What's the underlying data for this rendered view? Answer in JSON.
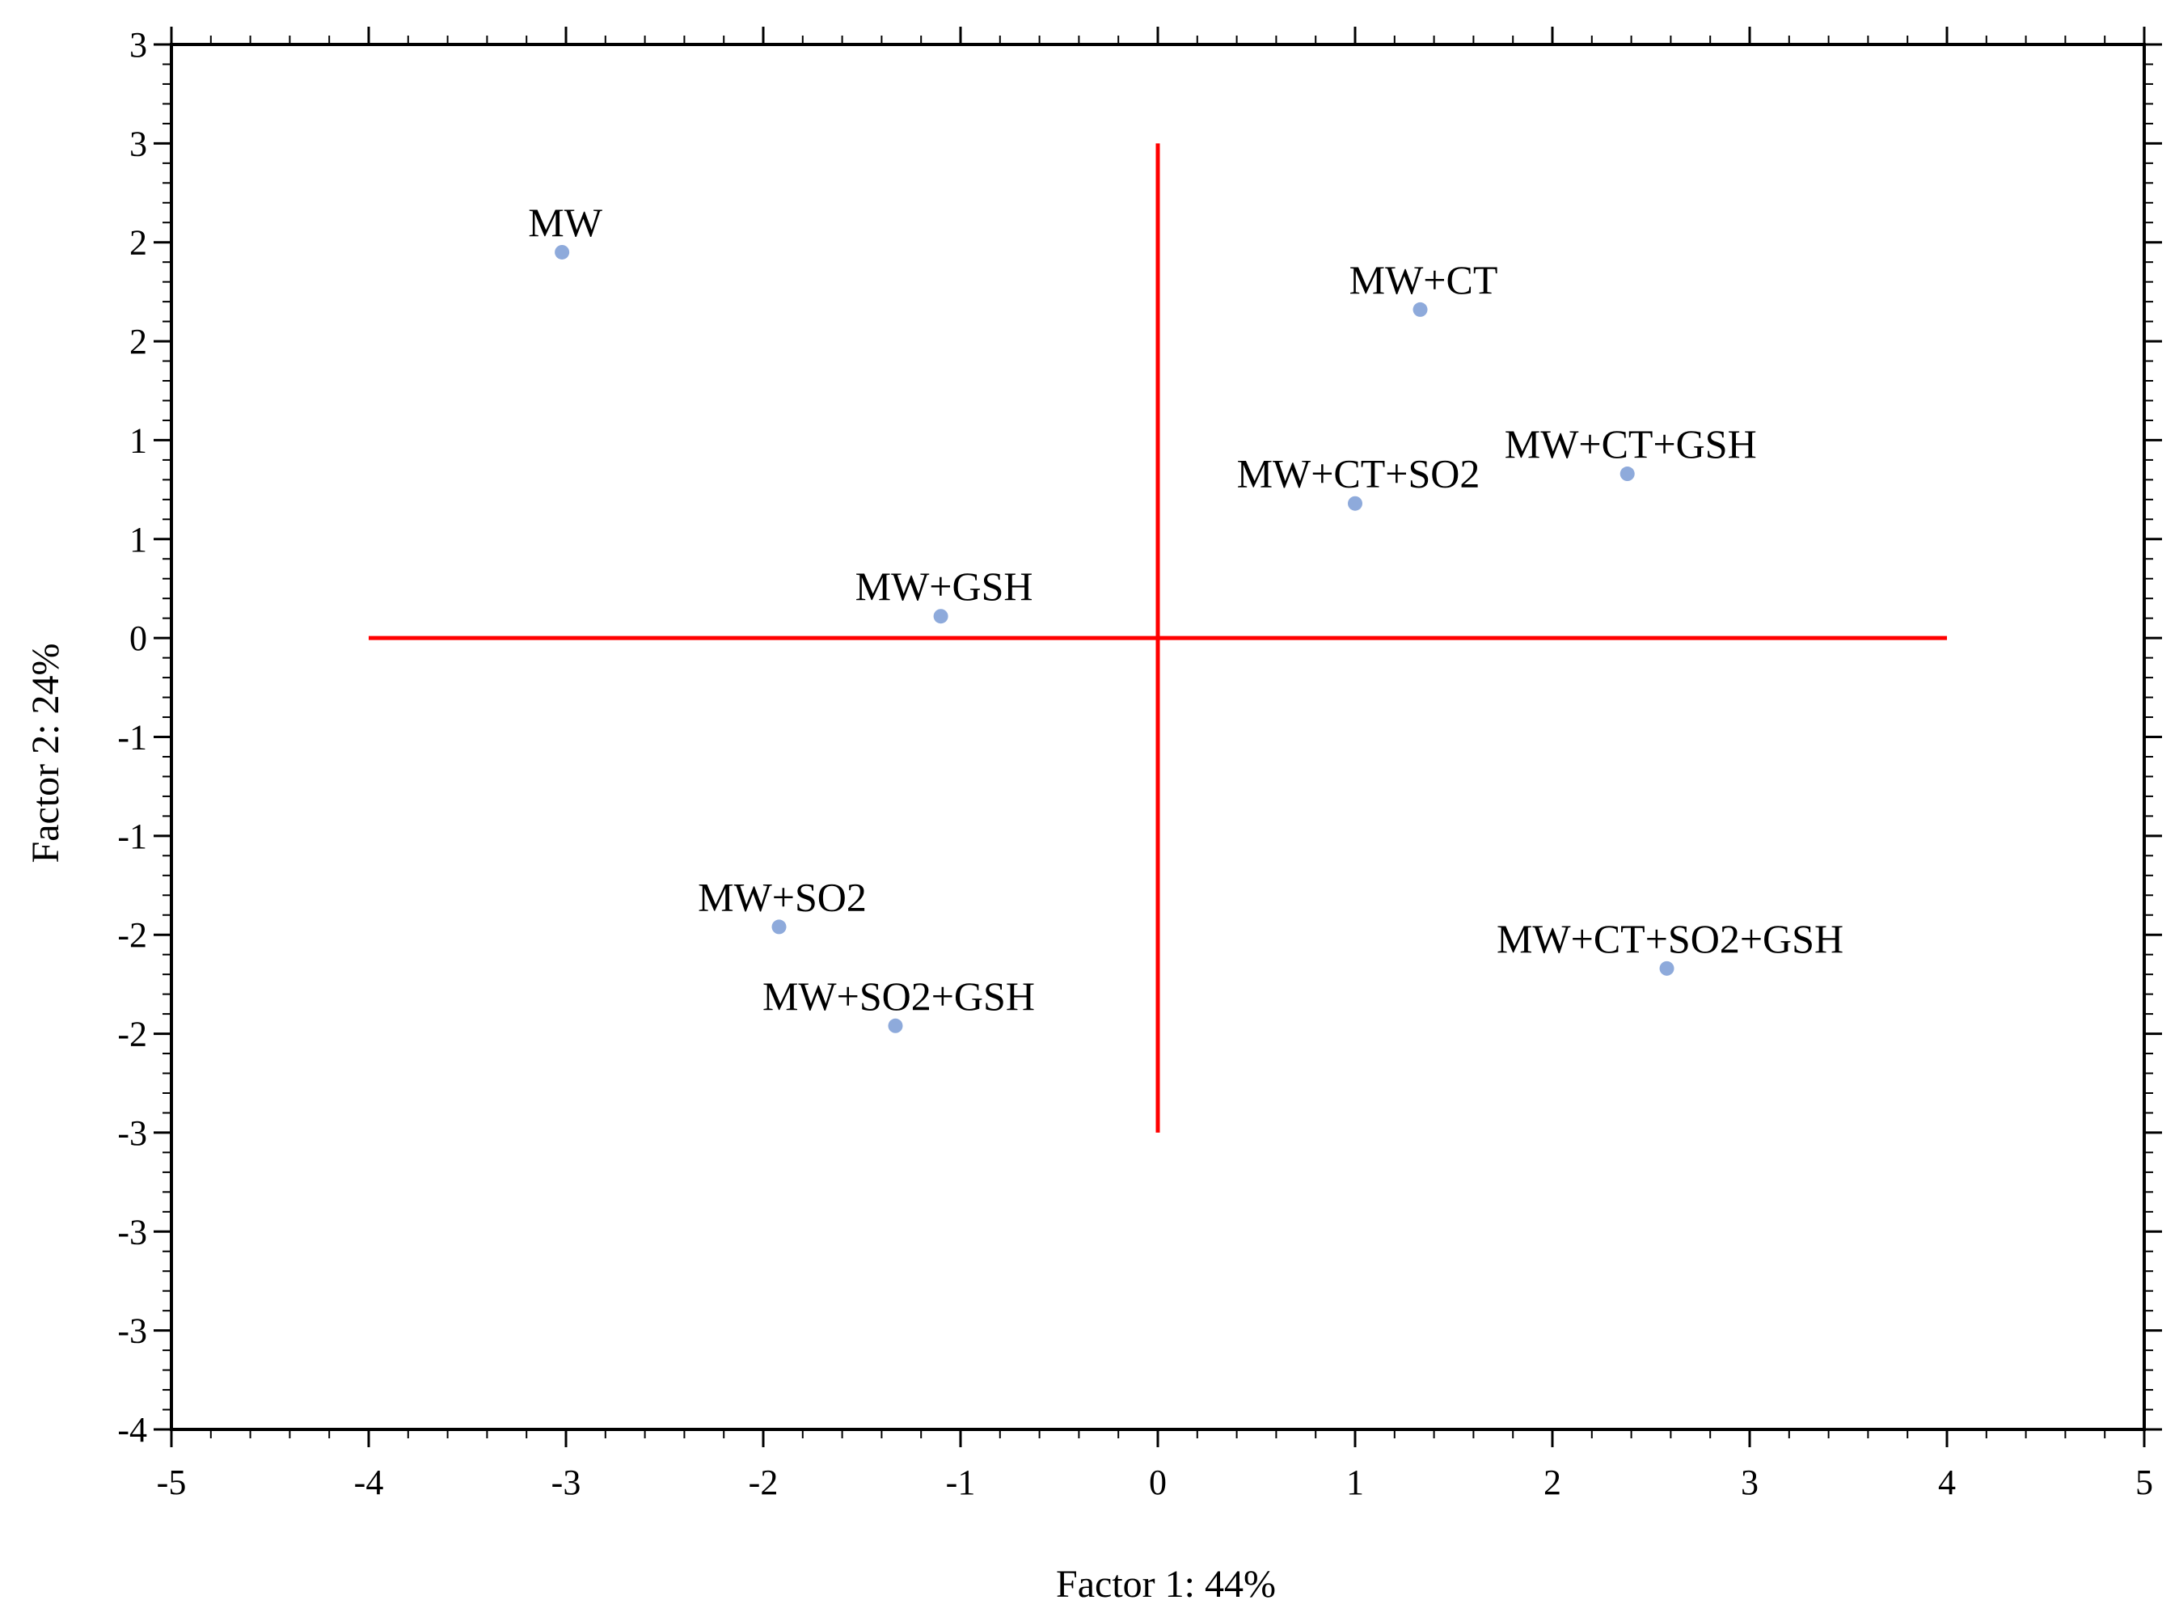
{
  "chart_data": {
    "type": "scatter",
    "title": "",
    "xlabel": "Factor 1: 44%",
    "ylabel": "Factor 2: 24%",
    "xlim": [
      -5,
      5
    ],
    "ylim": [
      -4,
      3
    ],
    "x_ticks": [
      -5,
      -4,
      -3,
      -2,
      -1,
      0,
      1,
      2,
      3,
      4,
      5
    ],
    "x_tick_labels": [
      "-5",
      "-4",
      "-3",
      "-2",
      "-1",
      "0",
      "1",
      "2",
      "3",
      "4",
      "5"
    ],
    "y_ticks": [
      3,
      2.5,
      2,
      1.5,
      1,
      0.5,
      0,
      -0.5,
      -1,
      -1.5,
      -2,
      -2.5,
      -3,
      -3.5,
      -4
    ],
    "y_tick_labels": [
      "3",
      "3",
      "2",
      "2",
      "1",
      "1",
      "0",
      "-1",
      "-1",
      "-2",
      "-2",
      "-3",
      "-3",
      "-3",
      "-4"
    ],
    "grid": false,
    "point_color": "#8eaadb",
    "reference_line_color": "#ff0000",
    "reference_lines": [
      {
        "x": [
          -4,
          4
        ],
        "y": [
          0,
          0
        ]
      },
      {
        "x": [
          0,
          0
        ],
        "y": [
          -2.5,
          2.5
        ]
      }
    ],
    "points": [
      {
        "label": "MW",
        "x": -3.02,
        "y": 1.95
      },
      {
        "label": "MW+CT",
        "x": 1.33,
        "y": 1.66
      },
      {
        "label": "MW+CT+GSH",
        "x": 2.38,
        "y": 0.83
      },
      {
        "label": "MW+CT+SO2",
        "x": 1.0,
        "y": 0.68
      },
      {
        "label": "MW+GSH",
        "x": -1.1,
        "y": 0.11
      },
      {
        "label": "MW+SO2",
        "x": -1.92,
        "y": -1.46
      },
      {
        "label": "MW+SO2+GSH",
        "x": -1.33,
        "y": -1.96
      },
      {
        "label": "MW+CT+SO2+GSH",
        "x": 2.58,
        "y": -1.67
      }
    ]
  }
}
